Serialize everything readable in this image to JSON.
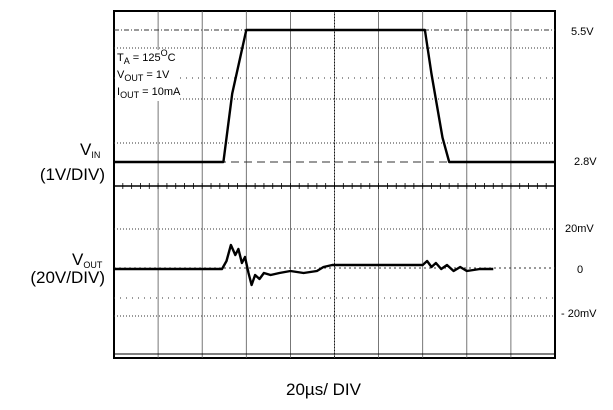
{
  "chart_data": {
    "type": "line",
    "title": "",
    "xlabel": "20µs/ DIV",
    "x_divisions": 10,
    "grid": "on",
    "channels": [
      {
        "name_main": "V",
        "name_sub": "IN",
        "scale": "(1V/DIV)",
        "levels": [
          {
            "label": "5.5V",
            "value": 5.5
          },
          {
            "label": "2.8V",
            "value": 2.8
          }
        ],
        "points": [
          [
            0,
            2.8
          ],
          [
            2.48,
            2.8
          ],
          [
            2.68,
            4.2
          ],
          [
            3.0,
            5.5
          ],
          [
            7.05,
            5.5
          ],
          [
            7.2,
            4.6
          ],
          [
            7.45,
            3.3
          ],
          [
            7.6,
            2.8
          ],
          [
            10,
            2.8
          ]
        ]
      },
      {
        "name_main": "V",
        "name_sub": "OUT",
        "scale": "(20V/DIV)",
        "levels": [
          {
            "label": "20mV",
            "value": 20
          },
          {
            "label": "0",
            "value": 0
          },
          {
            "label": "- 20mV",
            "value": -20
          }
        ],
        "points": [
          [
            0,
            0
          ],
          [
            2.45,
            0
          ],
          [
            2.55,
            4
          ],
          [
            2.65,
            12
          ],
          [
            2.75,
            7
          ],
          [
            2.82,
            10
          ],
          [
            2.9,
            3
          ],
          [
            2.97,
            6
          ],
          [
            3.05,
            -2
          ],
          [
            3.12,
            -8
          ],
          [
            3.2,
            -3
          ],
          [
            3.3,
            -5
          ],
          [
            3.4,
            -2
          ],
          [
            3.55,
            -3
          ],
          [
            3.75,
            -2
          ],
          [
            4.0,
            -1
          ],
          [
            4.3,
            -2
          ],
          [
            4.6,
            -1
          ],
          [
            4.75,
            1
          ],
          [
            4.95,
            2
          ],
          [
            5.5,
            2
          ],
          [
            6.5,
            2
          ],
          [
            7.0,
            2
          ],
          [
            7.1,
            4
          ],
          [
            7.2,
            1
          ],
          [
            7.3,
            3
          ],
          [
            7.42,
            0
          ],
          [
            7.55,
            2
          ],
          [
            7.7,
            -1
          ],
          [
            7.85,
            1
          ],
          [
            8.0,
            -1
          ],
          [
            8.3,
            0
          ],
          [
            8.6,
            0
          ]
        ]
      }
    ],
    "annotation": {
      "ta_main": "T",
      "ta_sub": "A",
      "ta_rest": " = 125",
      "ta_sup": "O",
      "ta_unit": "C",
      "vout_main": "V",
      "vout_sub": "OUT",
      "vout_rest": " = 1V",
      "iout_main": "I",
      "iout_sub": "OUT",
      "iout_rest": " = 10mA"
    }
  }
}
